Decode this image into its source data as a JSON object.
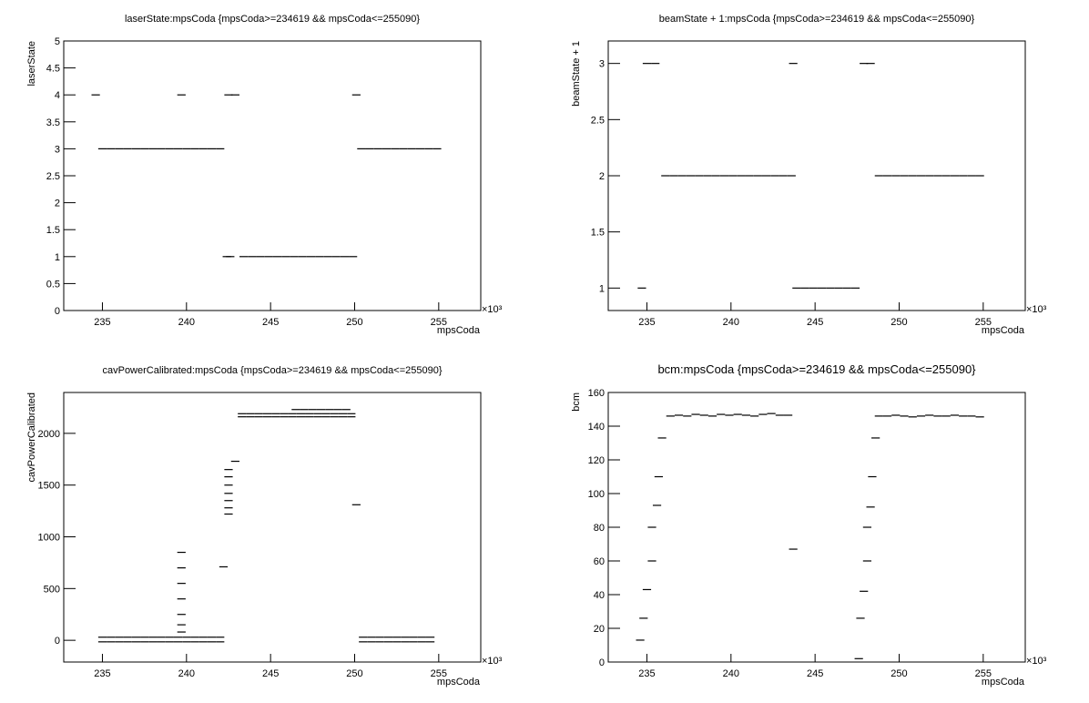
{
  "chart_data": [
    {
      "type": "scatter",
      "title": "laserState:mpsCoda {mpsCoda>=234619 && mpsCoda<=255090}",
      "x_label": "mpsCoda",
      "y_label": "laserState",
      "x_exponent": "×10³",
      "color": "#000000",
      "x": [
        234.6,
        235,
        235.5,
        236,
        236.5,
        237,
        237.5,
        238,
        238.5,
        239,
        239.5,
        240,
        240.5,
        241,
        241.5,
        242,
        239.7,
        242.5,
        242.9,
        242.4,
        242.6,
        243.4,
        243.9,
        244.4,
        244.9,
        245.4,
        245.9,
        246.4,
        246.9,
        247.4,
        247.9,
        248.4,
        248.9,
        249.4,
        249.9,
        250.1,
        250.4,
        250.9,
        251.4,
        251.9,
        252.4,
        252.9,
        253.4,
        253.9,
        254.4,
        254.9
      ],
      "values": [
        4,
        3,
        3,
        3,
        3,
        3,
        3,
        3,
        3,
        3,
        3,
        3,
        3,
        3,
        3,
        3,
        4,
        4,
        4,
        1,
        1,
        1,
        1,
        1,
        1,
        1,
        1,
        1,
        1,
        1,
        1,
        1,
        1,
        1,
        1,
        4,
        3,
        3,
        3,
        3,
        3,
        3,
        3,
        3,
        3,
        3
      ],
      "xlim": [
        232.7,
        257.5
      ],
      "ylim": [
        0,
        5
      ],
      "xticks": [
        235,
        240,
        245,
        250,
        255
      ],
      "yticks": [
        0,
        0.5,
        1,
        1.5,
        2,
        2.5,
        3,
        3.5,
        4,
        4.5,
        5
      ]
    },
    {
      "type": "scatter",
      "title": "beamState + 1:mpsCoda {mpsCoda>=234619 && mpsCoda<=255090}",
      "x_label": "mpsCoda",
      "y_label": "beamState + 1",
      "x_exponent": "×10³",
      "color": "#000000",
      "x": [
        234.7,
        235,
        235.5,
        236.1,
        236.6,
        237.1,
        237.6,
        238.1,
        238.6,
        239.1,
        239.6,
        240.1,
        240.6,
        241.1,
        241.6,
        242.1,
        242.6,
        243.1,
        243.6,
        243.7,
        243.9,
        244.4,
        244.9,
        245.4,
        245.9,
        246.4,
        246.9,
        247.4,
        247.9,
        248.3,
        248.8,
        249.3,
        249.8,
        250.3,
        250.8,
        251.3,
        251.8,
        252.3,
        252.8,
        253.3,
        253.8,
        254.3,
        254.8
      ],
      "values": [
        1,
        3,
        3,
        2,
        2,
        2,
        2,
        2,
        2,
        2,
        2,
        2,
        2,
        2,
        2,
        2,
        2,
        2,
        2,
        3,
        1,
        1,
        1,
        1,
        1,
        1,
        1,
        1,
        3,
        3,
        2,
        2,
        2,
        2,
        2,
        2,
        2,
        2,
        2,
        2,
        2,
        2,
        2
      ],
      "xlim": [
        232.7,
        257.5
      ],
      "ylim": [
        0.8,
        3.2
      ],
      "xticks": [
        235,
        240,
        245,
        250,
        255
      ],
      "yticks": [
        1,
        1.5,
        2,
        2.5,
        3
      ]
    },
    {
      "type": "scatter",
      "title": "cavPowerCalibrated:mpsCoda {mpsCoda>=234619 && mpsCoda<=255090}",
      "x_label": "mpsCoda",
      "y_label": "cavPowerCalibrated",
      "x_exponent": "×10³",
      "color": "#000000",
      "x": [
        235,
        235.5,
        236,
        236.5,
        237,
        237.5,
        238,
        238.5,
        239,
        239.5,
        240,
        240.5,
        241,
        241.5,
        242,
        235,
        235.5,
        236,
        236.5,
        237,
        237.5,
        238,
        238.5,
        239,
        239.5,
        240,
        240.5,
        241,
        241.5,
        242,
        239.7,
        239.7,
        239.7,
        239.7,
        239.7,
        239.7,
        239.7,
        242.5,
        242.5,
        242.5,
        242.5,
        242.5,
        242.5,
        242.5,
        242.2,
        242.9,
        243.3,
        243.8,
        244.3,
        244.8,
        245.3,
        245.8,
        246.3,
        246.8,
        247.3,
        247.8,
        248.3,
        248.8,
        249.3,
        249.8,
        243.3,
        243.8,
        244.3,
        244.8,
        245.3,
        245.8,
        246.3,
        246.8,
        247.3,
        247.8,
        248.3,
        248.8,
        249.3,
        249.8,
        246.5,
        247,
        247.5,
        248,
        248.5,
        249,
        249.5,
        250.5,
        251,
        251.5,
        252,
        252.5,
        253,
        253.5,
        254,
        254.5,
        250.5,
        251,
        251.5,
        252,
        252.5,
        253,
        253.5,
        254,
        254.5,
        250.1
      ],
      "values": [
        30,
        30,
        30,
        30,
        30,
        30,
        30,
        30,
        30,
        30,
        30,
        30,
        30,
        30,
        30,
        -15,
        -15,
        -15,
        -15,
        -15,
        -15,
        -15,
        -15,
        -15,
        -15,
        -15,
        -15,
        -15,
        -15,
        -15,
        80,
        150,
        250,
        400,
        550,
        700,
        850,
        1220,
        1280,
        1350,
        1420,
        1500,
        1580,
        1650,
        710,
        1730,
        2190,
        2190,
        2190,
        2190,
        2190,
        2190,
        2190,
        2190,
        2190,
        2190,
        2190,
        2190,
        2190,
        2190,
        2160,
        2160,
        2160,
        2160,
        2160,
        2160,
        2160,
        2160,
        2160,
        2160,
        2160,
        2160,
        2160,
        2160,
        2230,
        2230,
        2230,
        2230,
        2230,
        2230,
        2230,
        30,
        30,
        30,
        30,
        30,
        30,
        30,
        30,
        30,
        -15,
        -15,
        -15,
        -15,
        -15,
        -15,
        -15,
        -15,
        -15,
        1310
      ],
      "xlim": [
        232.7,
        257.5
      ],
      "ylim": [
        -210,
        2395
      ],
      "xticks": [
        235,
        240,
        245,
        250,
        255
      ],
      "yticks": [
        0,
        500,
        1000,
        1500,
        2000
      ]
    },
    {
      "type": "scatter",
      "title": "bcm:mpsCoda {mpsCoda>=234619 && mpsCoda<=255090}",
      "x_label": "mpsCoda",
      "y_label": "bcm",
      "x_exponent": "×10³",
      "color": "#000000",
      "x": [
        234.6,
        234.8,
        235.0,
        235.3,
        235.3,
        235.6,
        235.7,
        235.9,
        236.4,
        236.9,
        237.4,
        237.9,
        238.4,
        238.9,
        239.4,
        239.9,
        240.4,
        240.9,
        241.4,
        241.9,
        242.4,
        242.9,
        243.4,
        243.7,
        247.6,
        247.7,
        247.9,
        248.1,
        248.1,
        248.3,
        248.4,
        248.6,
        248.8,
        249.3,
        249.8,
        250.3,
        250.8,
        251.3,
        251.8,
        252.3,
        252.8,
        253.3,
        253.8,
        254.3,
        254.8
      ],
      "values": [
        13,
        26,
        43,
        60,
        80,
        93,
        110,
        133,
        146,
        146.5,
        146,
        147,
        146.5,
        146,
        147,
        146.5,
        147,
        146.5,
        146,
        147,
        147.5,
        146.5,
        146.5,
        67,
        2,
        26,
        42,
        60,
        80,
        92,
        110,
        133,
        146,
        146,
        146.5,
        146,
        145.5,
        146,
        146.5,
        146,
        146,
        146.5,
        146,
        146,
        145.5
      ],
      "xlim": [
        232.7,
        257.5
      ],
      "ylim": [
        0,
        160
      ],
      "xticks": [
        235,
        240,
        245,
        250,
        255
      ],
      "yticks": [
        0,
        20,
        40,
        60,
        80,
        100,
        120,
        140,
        160
      ]
    }
  ]
}
